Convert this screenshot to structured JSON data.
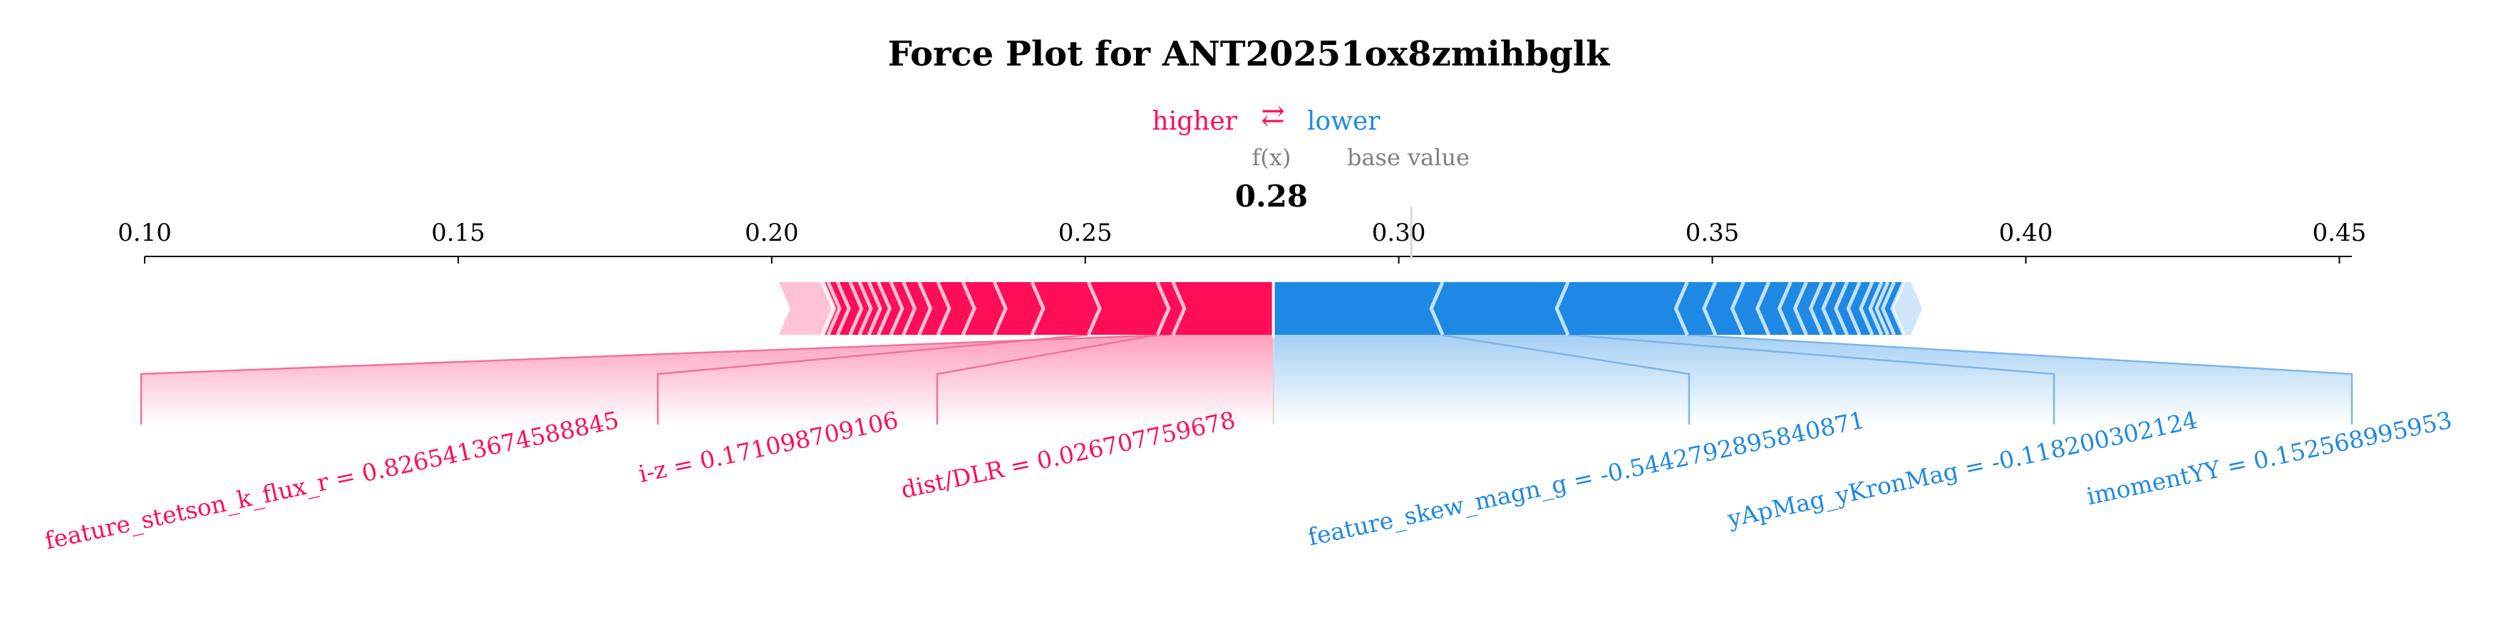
{
  "chart_data": {
    "type": "force_plot",
    "title": "Force Plot for ANT20251ox8zmihbglk",
    "legend": {
      "higher": "higher",
      "arrow": "⇄",
      "lower": "lower"
    },
    "fx_label": "f(x)",
    "base_value_label": "base value",
    "fx_value": 0.28,
    "fx_value_text": "0.28",
    "base_value": 0.302,
    "xlim": [
      0.1,
      0.452
    ],
    "ticks": [
      0.1,
      0.15,
      0.2,
      0.25,
      0.3,
      0.35,
      0.4,
      0.45
    ],
    "tick_labels": [
      "0.10",
      "0.15",
      "0.20",
      "0.25",
      "0.30",
      "0.35",
      "0.40",
      "0.45"
    ],
    "positive_range": [
      0.2,
      0.28
    ],
    "negative_range": [
      0.28,
      0.3835
    ],
    "positive_segment_boundaries": [
      0.208,
      0.209,
      0.2105,
      0.2125,
      0.214,
      0.2155,
      0.217,
      0.219,
      0.221,
      0.2235,
      0.2265,
      0.2305,
      0.2355,
      0.2415,
      0.2505,
      0.2615,
      0.264
    ],
    "negative_segment_boundaries": [
      0.307,
      0.327,
      0.346,
      0.3505,
      0.355,
      0.359,
      0.3625,
      0.365,
      0.3675,
      0.3695,
      0.3715,
      0.3735,
      0.3755,
      0.377,
      0.378,
      0.379,
      0.3805
    ],
    "features": [
      {
        "label": "feature_stetson_k_flux_r = 0.8265413674588845",
        "effect": "positive",
        "bar_value": 0.2635
      },
      {
        "label": "i-z = 0.171098709106",
        "effect": "positive",
        "bar_value": 0.2505
      },
      {
        "label": "dist/DLR = 0.026707759678",
        "effect": "positive",
        "bar_value": 0.2615
      },
      {
        "label": "feature_skew_magn_g = -0.5442792895840871",
        "effect": "negative",
        "bar_value": 0.3065
      },
      {
        "label": "yApMag_yKronMag = -0.118200302124",
        "effect": "negative",
        "bar_value": 0.327
      },
      {
        "label": "imomentYY = 0.152568995953",
        "effect": "negative",
        "bar_value": 0.346
      }
    ],
    "colors": {
      "positive": "#ff0d57",
      "negative": "#1e88e5",
      "positive_light": "#ffc3d5",
      "negative_light": "#d1e6fa",
      "positive_line": "#f1739a",
      "negative_line": "#7fb5e8",
      "title": "#000000",
      "axis": "#000000",
      "label_grey": "#808080"
    }
  }
}
